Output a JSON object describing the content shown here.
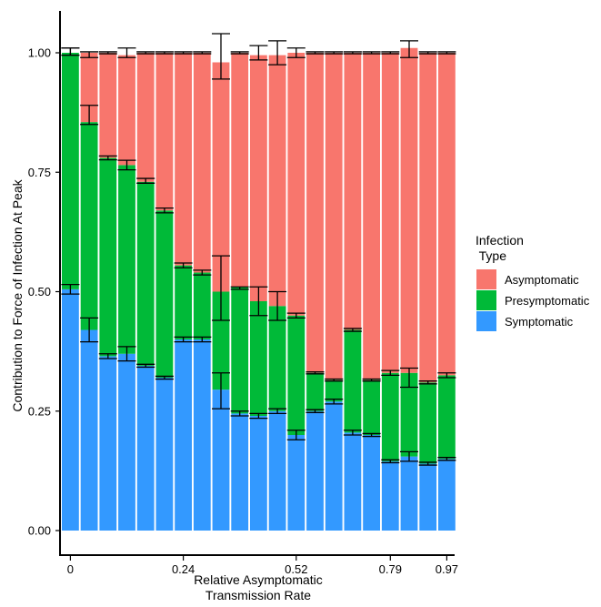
{
  "chart_data": {
    "type": "bar",
    "stacked": true,
    "x_tick_labels": [
      "0",
      "0.24",
      "0.52",
      "0.79",
      "0.97"
    ],
    "y_ticks": [
      0,
      0.25,
      0.5,
      0.75,
      1
    ],
    "y_tick_labels": [
      "0.00",
      "0.25",
      "0.50",
      "0.75",
      "1.00"
    ],
    "xlabel_lines": [
      "Relative Asymptomatic",
      "Transmission Rate"
    ],
    "ylabel": "Contribution to  Force of Infection At Peak",
    "ylim": [
      0,
      1.05
    ],
    "legend": {
      "title_lines": [
        "Infection",
        " Type"
      ],
      "placement": "right",
      "entries": [
        "Asymptomatic",
        "Presymptomatic",
        "Symptomatic"
      ]
    },
    "colors": {
      "Asymptomatic": "#F8766D",
      "Presymptomatic": "#00BA38",
      "Symptomatic": "#3399FF"
    },
    "bar_count": 21,
    "series": [
      {
        "name": "Symptomatic",
        "values": [
          0.505,
          0.42,
          0.365,
          0.37,
          0.345,
          0.32,
          0.4,
          0.4,
          0.295,
          0.245,
          0.24,
          0.25,
          0.2,
          0.25,
          0.27,
          0.205,
          0.2,
          0.145,
          0.155,
          0.14,
          0.15
        ]
      },
      {
        "name": "Presymptomatic",
        "values": [
          0.495,
          0.435,
          0.415,
          0.395,
          0.385,
          0.35,
          0.155,
          0.14,
          0.205,
          0.265,
          0.24,
          0.22,
          0.25,
          0.08,
          0.045,
          0.215,
          0.115,
          0.185,
          0.175,
          0.17,
          0.175
        ]
      },
      {
        "name": "Asymptomatic",
        "values": [
          0.0,
          0.145,
          0.22,
          0.23,
          0.27,
          0.33,
          0.445,
          0.46,
          0.48,
          0.49,
          0.515,
          0.525,
          0.55,
          0.67,
          0.685,
          0.58,
          0.685,
          0.67,
          0.68,
          0.69,
          0.675
        ]
      }
    ],
    "error_bars": [
      [
        0.495,
        0.515,
        0.995,
        1.01,
        0.995,
        1.01
      ],
      [
        0.395,
        0.445,
        0.85,
        0.89,
        0.99,
        1.002
      ],
      [
        0.36,
        0.37,
        0.776,
        0.784,
        0.998,
        1.002
      ],
      [
        0.355,
        0.385,
        0.755,
        0.775,
        0.99,
        1.01
      ],
      [
        0.342,
        0.348,
        0.727,
        0.737,
        0.998,
        1.002
      ],
      [
        0.317,
        0.323,
        0.665,
        0.675,
        0.998,
        1.002
      ],
      [
        0.395,
        0.405,
        0.55,
        0.56,
        0.998,
        1.002
      ],
      [
        0.395,
        0.405,
        0.535,
        0.545,
        0.998,
        1.002
      ],
      [
        0.255,
        0.33,
        0.44,
        0.575,
        0.945,
        1.04
      ],
      [
        0.24,
        0.25,
        0.505,
        0.51,
        0.998,
        1.002
      ],
      [
        0.235,
        0.245,
        0.45,
        0.51,
        0.985,
        1.015
      ],
      [
        0.245,
        0.255,
        0.44,
        0.5,
        0.975,
        1.025
      ],
      [
        0.19,
        0.21,
        0.445,
        0.455,
        0.99,
        1.01
      ],
      [
        0.247,
        0.253,
        0.328,
        0.332,
        0.998,
        1.002
      ],
      [
        0.265,
        0.275,
        0.313,
        0.317,
        0.998,
        1.002
      ],
      [
        0.2,
        0.21,
        0.417,
        0.423,
        0.998,
        1.002
      ],
      [
        0.197,
        0.203,
        0.313,
        0.317,
        0.998,
        1.002
      ],
      [
        0.142,
        0.148,
        0.325,
        0.335,
        0.998,
        1.002
      ],
      [
        0.145,
        0.165,
        0.3,
        0.34,
        0.99,
        1.025
      ],
      [
        0.137,
        0.143,
        0.307,
        0.313,
        0.998,
        1.002
      ],
      [
        0.147,
        0.153,
        0.32,
        0.33,
        0.998,
        1.002
      ]
    ]
  }
}
